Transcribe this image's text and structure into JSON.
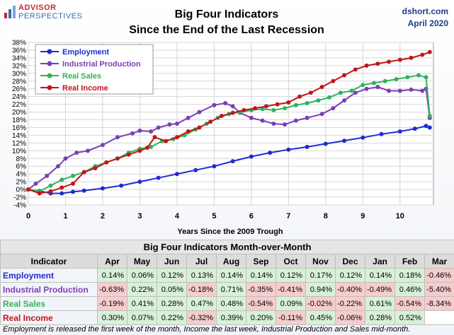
{
  "header": {
    "logo_line1": "ADVISOR",
    "logo_line2": "PERSPECTIVES",
    "title_line1": "Big Four Indicators",
    "title_line2": "Since the End of the Last Recession",
    "source_line1": "dshort.com",
    "source_line2": "April 2020"
  },
  "colors": {
    "employment": "#1f2bd4",
    "industrial": "#7b3fb5",
    "sales": "#2eb35a",
    "income": "#c0171b"
  },
  "chart_data": {
    "type": "line",
    "title": "Big Four Indicators Since the End of the Last Recession",
    "xlabel": "Years Since the 2009 Trough",
    "ylabel": "",
    "xlim": [
      0,
      10.9
    ],
    "ylim": [
      -4,
      38
    ],
    "x_ticks": [
      "0",
      "1",
      "2",
      "3",
      "4",
      "5",
      "6",
      "7",
      "8",
      "9",
      "10"
    ],
    "y_ticks": [
      "-4%",
      "-2%",
      "0%",
      "2%",
      "4%",
      "6%",
      "8%",
      "10%",
      "12%",
      "14%",
      "16%",
      "18%",
      "20%",
      "22%",
      "24%",
      "26%",
      "28%",
      "30%",
      "32%",
      "34%",
      "36%",
      "38%"
    ],
    "legend_position": "top-left",
    "series": [
      {
        "name": "Employment",
        "points": [
          [
            0,
            0
          ],
          [
            0.3,
            -0.4
          ],
          [
            0.6,
            -1.0
          ],
          [
            0.9,
            -1.0
          ],
          [
            1.2,
            -0.6
          ],
          [
            1.5,
            -0.3
          ],
          [
            2.0,
            0.3
          ],
          [
            2.5,
            1.0
          ],
          [
            3.0,
            2.0
          ],
          [
            3.5,
            3.0
          ],
          [
            4.0,
            4.0
          ],
          [
            4.5,
            5.0
          ],
          [
            5.0,
            6.0
          ],
          [
            5.5,
            7.3
          ],
          [
            6.0,
            8.5
          ],
          [
            6.5,
            9.5
          ],
          [
            7.0,
            10.3
          ],
          [
            7.5,
            11.0
          ],
          [
            8.0,
            11.8
          ],
          [
            8.5,
            12.6
          ],
          [
            9.0,
            13.4
          ],
          [
            9.5,
            14.3
          ],
          [
            10.0,
            15.0
          ],
          [
            10.4,
            15.7
          ],
          [
            10.7,
            16.4
          ],
          [
            10.8,
            16.0
          ]
        ]
      },
      {
        "name": "Industrial Production",
        "points": [
          [
            0,
            0
          ],
          [
            0.2,
            1.5
          ],
          [
            0.5,
            3.5
          ],
          [
            0.8,
            6.0
          ],
          [
            1.0,
            8.0
          ],
          [
            1.3,
            9.5
          ],
          [
            1.6,
            10.0
          ],
          [
            2.0,
            11.5
          ],
          [
            2.4,
            13.5
          ],
          [
            2.8,
            14.5
          ],
          [
            3.0,
            15.2
          ],
          [
            3.3,
            15.0
          ],
          [
            3.5,
            16.0
          ],
          [
            3.8,
            16.8
          ],
          [
            4.0,
            17.0
          ],
          [
            4.3,
            18.5
          ],
          [
            4.6,
            20.0
          ],
          [
            5.0,
            21.8
          ],
          [
            5.3,
            22.3
          ],
          [
            5.5,
            21.5
          ],
          [
            5.7,
            19.8
          ],
          [
            6.0,
            18.5
          ],
          [
            6.3,
            17.8
          ],
          [
            6.6,
            17.0
          ],
          [
            6.9,
            16.8
          ],
          [
            7.2,
            17.8
          ],
          [
            7.5,
            18.5
          ],
          [
            7.9,
            19.5
          ],
          [
            8.2,
            21.0
          ],
          [
            8.5,
            23.0
          ],
          [
            8.8,
            25.0
          ],
          [
            9.1,
            26.0
          ],
          [
            9.4,
            26.5
          ],
          [
            9.7,
            25.5
          ],
          [
            10.0,
            25.5
          ],
          [
            10.3,
            25.8
          ],
          [
            10.6,
            25.5
          ],
          [
            10.7,
            26.0
          ],
          [
            10.8,
            18.5
          ]
        ]
      },
      {
        "name": "Real Sales",
        "points": [
          [
            0,
            0
          ],
          [
            0.3,
            -0.5
          ],
          [
            0.6,
            1.0
          ],
          [
            0.9,
            2.5
          ],
          [
            1.2,
            3.5
          ],
          [
            1.5,
            4.5
          ],
          [
            1.8,
            6.0
          ],
          [
            2.1,
            7.0
          ],
          [
            2.4,
            8.0
          ],
          [
            2.7,
            9.5
          ],
          [
            3.0,
            10.5
          ],
          [
            3.3,
            11.0
          ],
          [
            3.6,
            12.5
          ],
          [
            3.9,
            13.0
          ],
          [
            4.2,
            14.0
          ],
          [
            4.5,
            15.5
          ],
          [
            4.8,
            17.0
          ],
          [
            5.1,
            18.5
          ],
          [
            5.4,
            19.5
          ],
          [
            5.7,
            20.0
          ],
          [
            6.0,
            20.5
          ],
          [
            6.3,
            20.8
          ],
          [
            6.6,
            20.5
          ],
          [
            6.9,
            21.0
          ],
          [
            7.2,
            21.8
          ],
          [
            7.5,
            22.3
          ],
          [
            7.8,
            23.0
          ],
          [
            8.1,
            23.8
          ],
          [
            8.4,
            25.0
          ],
          [
            8.7,
            25.5
          ],
          [
            9.0,
            27.0
          ],
          [
            9.3,
            27.5
          ],
          [
            9.6,
            28.0
          ],
          [
            9.9,
            28.5
          ],
          [
            10.2,
            29.0
          ],
          [
            10.5,
            29.5
          ],
          [
            10.7,
            29.0
          ],
          [
            10.8,
            19.0
          ]
        ]
      },
      {
        "name": "Real Income",
        "points": [
          [
            0,
            0
          ],
          [
            0.3,
            -1.0
          ],
          [
            0.6,
            -0.5
          ],
          [
            0.9,
            0.5
          ],
          [
            1.2,
            1.5
          ],
          [
            1.5,
            4.5
          ],
          [
            1.8,
            5.5
          ],
          [
            2.1,
            7.0
          ],
          [
            2.4,
            8.0
          ],
          [
            2.7,
            9.0
          ],
          [
            3.0,
            10.0
          ],
          [
            3.2,
            10.8
          ],
          [
            3.4,
            13.5
          ],
          [
            3.7,
            12.5
          ],
          [
            4.0,
            13.5
          ],
          [
            4.3,
            15.0
          ],
          [
            4.6,
            16.0
          ],
          [
            4.9,
            17.5
          ],
          [
            5.2,
            19.0
          ],
          [
            5.5,
            19.8
          ],
          [
            5.8,
            20.5
          ],
          [
            6.1,
            21.0
          ],
          [
            6.4,
            21.5
          ],
          [
            6.7,
            22.0
          ],
          [
            7.0,
            22.5
          ],
          [
            7.3,
            24.0
          ],
          [
            7.6,
            25.0
          ],
          [
            7.9,
            26.5
          ],
          [
            8.2,
            28.0
          ],
          [
            8.5,
            29.5
          ],
          [
            8.8,
            31.0
          ],
          [
            9.1,
            32.0
          ],
          [
            9.4,
            32.5
          ],
          [
            9.7,
            33.0
          ],
          [
            10.0,
            33.5
          ],
          [
            10.3,
            34.0
          ],
          [
            10.6,
            34.8
          ],
          [
            10.8,
            35.5
          ]
        ]
      }
    ]
  },
  "table": {
    "title": "Big Four Indicators Month-over-Month",
    "indicator_header": "Indicator",
    "months": [
      "Apr",
      "May",
      "Jun",
      "Jul",
      "Aug",
      "Sep",
      "Oct",
      "Nov",
      "Dec",
      "Jan",
      "Feb",
      "Mar"
    ],
    "rows": [
      {
        "name": "Employment",
        "color": "#1f2bd4",
        "values": [
          "0.14%",
          "0.06%",
          "0.12%",
          "0.13%",
          "0.14%",
          "0.14%",
          "0.12%",
          "0.17%",
          "0.12%",
          "0.14%",
          "0.18%",
          "-0.46%"
        ]
      },
      {
        "name": "Industrial Production",
        "color": "#7b3fb5",
        "values": [
          "-0.63%",
          "0.22%",
          "0.05%",
          "-0.18%",
          "0.71%",
          "-0.35%",
          "-0.41%",
          "0.94%",
          "-0.40%",
          "-0.49%",
          "0.46%",
          "-5.40%"
        ]
      },
      {
        "name": "Real Sales",
        "color": "#2eb35a",
        "values": [
          "-0.19%",
          "0.41%",
          "0.28%",
          "0.47%",
          "0.48%",
          "-0.54%",
          "0.09%",
          "-0.02%",
          "-0.22%",
          "0.61%",
          "-0.54%",
          "-8.34%"
        ]
      },
      {
        "name": "Real Income",
        "color": "#c0171b",
        "values": [
          "0.30%",
          "0.07%",
          "0.22%",
          "-0.32%",
          "0.39%",
          "0.20%",
          "-0.11%",
          "0.45%",
          "-0.06%",
          "0.28%",
          "0.52%",
          ""
        ]
      }
    ]
  },
  "footnote": "Employment is released the first week of the month, Income the last week, Industrial Production and Sales mid-month."
}
